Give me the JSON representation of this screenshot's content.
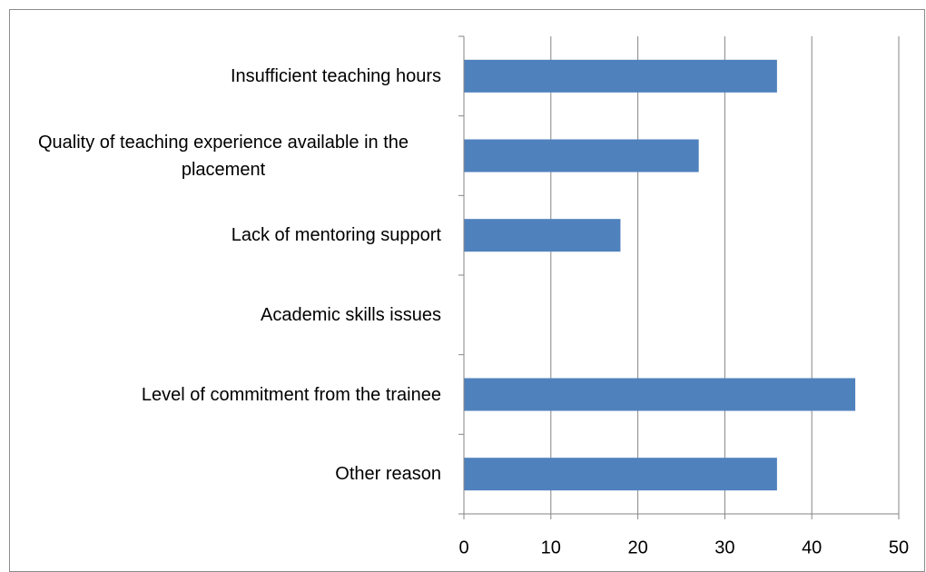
{
  "chart_data": {
    "type": "bar",
    "orientation": "horizontal",
    "categories": [
      "Insufficient teaching hours",
      "Quality of teaching experience available in the placement",
      "Lack of mentoring support",
      "Academic skills issues",
      "Level of commitment from the trainee",
      "Other reason"
    ],
    "values": [
      36,
      27,
      18,
      0,
      45,
      36
    ],
    "color": "#4f81bd",
    "xlim": [
      0,
      50
    ],
    "xticks": [
      0,
      10,
      20,
      30,
      40,
      50
    ],
    "grid": true
  }
}
